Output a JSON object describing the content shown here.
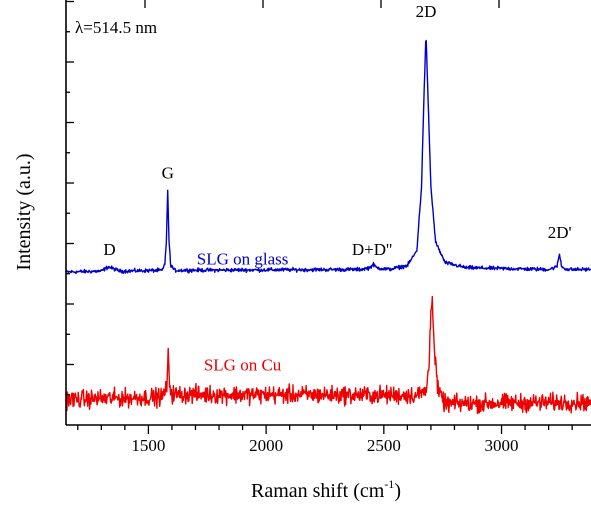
{
  "chart_data": {
    "type": "line",
    "xlabel_main": "Raman shift (cm",
    "xlabel_sup": "-1",
    "xlabel_close": ")",
    "ylabel": "Intensity (a.u.)",
    "xlim": [
      1150,
      3380
    ],
    "xticks": [
      1500,
      2000,
      2500,
      3000
    ],
    "x_minor_step": 100,
    "y_axis_values": false,
    "wavelength_label": "λ=514.5 nm",
    "grid": false,
    "series": [
      {
        "name": "SLG on glass",
        "color": "#0000cc",
        "noise": 0.003,
        "points": [
          [
            1150,
            0.36
          ],
          [
            1300,
            0.362
          ],
          [
            1330,
            0.372
          ],
          [
            1350,
            0.368
          ],
          [
            1380,
            0.362
          ],
          [
            1560,
            0.364
          ],
          [
            1570,
            0.38
          ],
          [
            1576,
            0.43
          ],
          [
            1582,
            0.548
          ],
          [
            1588,
            0.43
          ],
          [
            1594,
            0.378
          ],
          [
            1610,
            0.364
          ],
          [
            2400,
            0.366
          ],
          [
            2440,
            0.37
          ],
          [
            2455,
            0.378
          ],
          [
            2470,
            0.37
          ],
          [
            2520,
            0.366
          ],
          [
            2600,
            0.375
          ],
          [
            2640,
            0.41
          ],
          [
            2660,
            0.56
          ],
          [
            2672,
            0.8
          ],
          [
            2679,
            0.92
          ],
          [
            2686,
            0.8
          ],
          [
            2700,
            0.56
          ],
          [
            2720,
            0.43
          ],
          [
            2760,
            0.382
          ],
          [
            2850,
            0.37
          ],
          [
            3200,
            0.366
          ],
          [
            3235,
            0.372
          ],
          [
            3246,
            0.402
          ],
          [
            3256,
            0.372
          ],
          [
            3280,
            0.366
          ],
          [
            3380,
            0.366
          ]
        ]
      },
      {
        "name": "SLG on Cu",
        "color": "#ee0000",
        "noise": 0.014,
        "points": [
          [
            1150,
            0.06
          ],
          [
            1560,
            0.066
          ],
          [
            1578,
            0.09
          ],
          [
            1584,
            0.16
          ],
          [
            1590,
            0.1
          ],
          [
            1600,
            0.072
          ],
          [
            2640,
            0.07
          ],
          [
            2680,
            0.08
          ],
          [
            2692,
            0.14
          ],
          [
            2700,
            0.282
          ],
          [
            2706,
            0.3
          ],
          [
            2714,
            0.18
          ],
          [
            2730,
            0.08
          ],
          [
            2760,
            0.05
          ],
          [
            3380,
            0.054
          ]
        ]
      }
    ],
    "annotations": [
      {
        "text": "D",
        "x": 1335,
        "y": 0.4
      },
      {
        "text": "G",
        "x": 1582,
        "y": 0.58
      },
      {
        "text": "D+D''",
        "x": 2450,
        "y": 0.4
      },
      {
        "text": "2D",
        "x": 2679,
        "y": 0.96
      },
      {
        "text": "2D'",
        "x": 3247,
        "y": 0.44
      }
    ],
    "series_labels": [
      {
        "text": "SLG on glass",
        "x": 1900,
        "y": 0.378
      },
      {
        "text": "SLG on Cu",
        "x": 1900,
        "y": 0.128
      }
    ]
  }
}
